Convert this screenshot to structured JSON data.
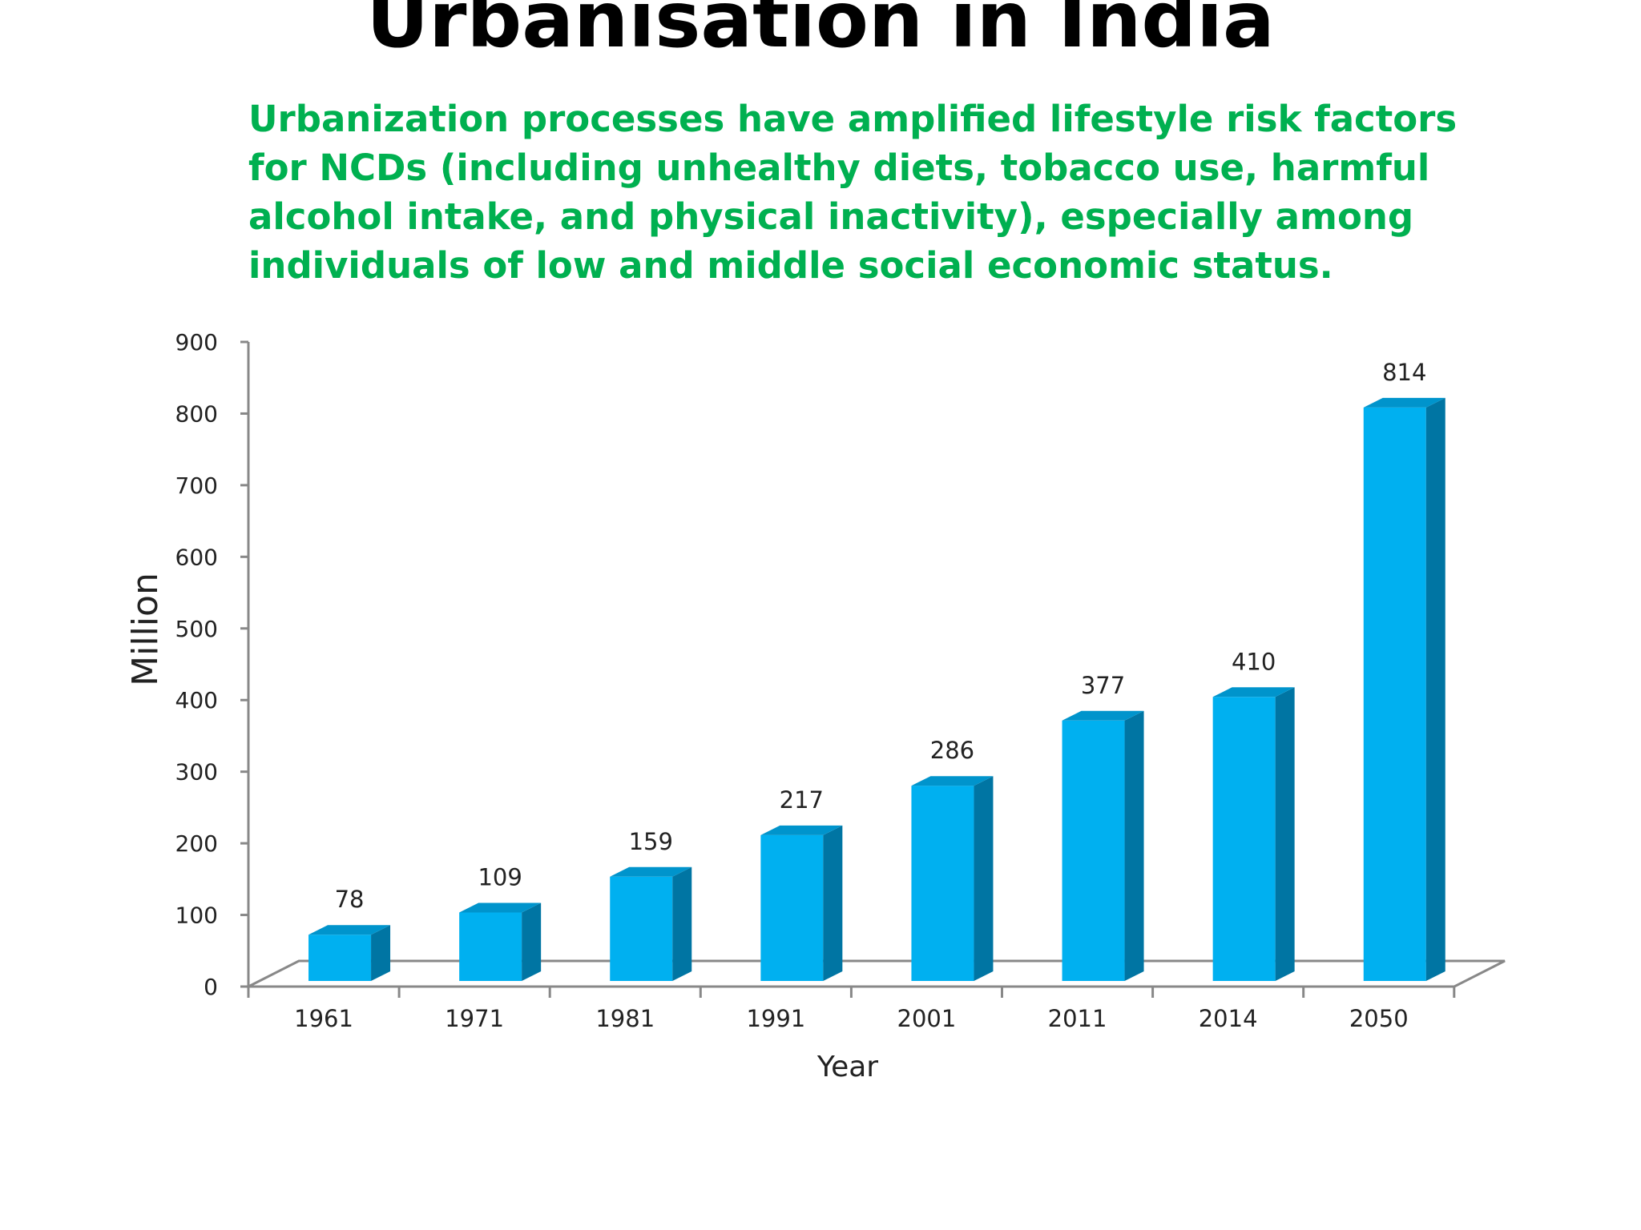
{
  "slide": {
    "title": "Urbanisation in India",
    "subtitle": "Urbanization processes have amplified lifestyle risk factors for NCDs (including unhealthy diets, tobacco use, harmful alcohol intake, and physical inactivity), especially among individuals of low and middle social economic status."
  },
  "colors": {
    "title_text": "#000000",
    "subtitle_text": "#00b050",
    "bar_front": "#00b0f0",
    "bar_side": "#0075a3",
    "bar_top": "#0094cc",
    "axis": "#888888"
  },
  "chart_data": {
    "type": "bar",
    "style": "3d-column",
    "categories": [
      "1961",
      "1971",
      "1981",
      "1991",
      "2001",
      "2011",
      "2014",
      "2050"
    ],
    "series": [
      {
        "values": [
          78,
          109,
          159,
          217,
          286,
          377,
          410,
          814
        ]
      }
    ],
    "data_labels": [
      "78",
      "109",
      "159",
      "217",
      "286",
      "377",
      "410",
      "814"
    ],
    "xlabel": "Year",
    "ylabel": "Million",
    "ylim": [
      0,
      900
    ],
    "yticks": [
      0,
      100,
      200,
      300,
      400,
      500,
      600,
      700,
      800,
      900
    ],
    "ytick_labels": [
      "0",
      "100",
      "200",
      "300",
      "400",
      "500",
      "600",
      "700",
      "800",
      "900"
    ],
    "grid": false,
    "legend": "none"
  }
}
